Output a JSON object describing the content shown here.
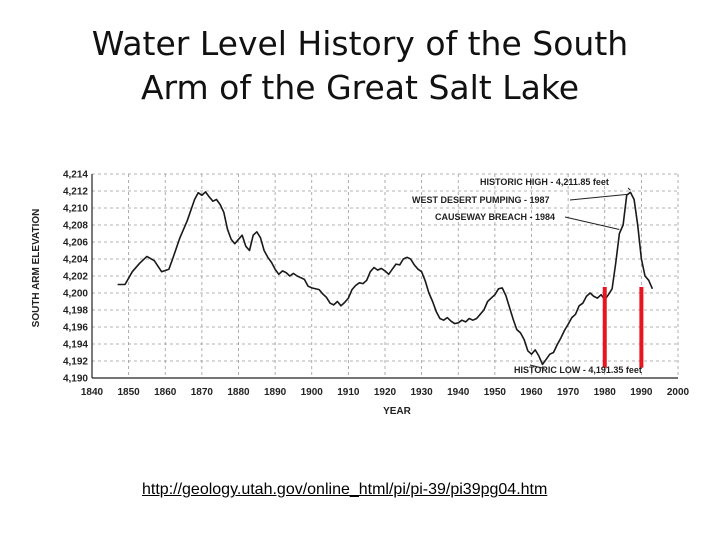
{
  "slide": {
    "title_line1": "Water Level History of the South",
    "title_line2": "Arm of the Great Salt Lake",
    "source_url": "http://geology.utah.gov/online_html/pi/pi-39/pi39pg04.htm"
  },
  "chart_data": {
    "type": "line",
    "title": "",
    "xlabel": "YEAR",
    "ylabel": "SOUTH ARM ELEVATION",
    "xlim": [
      1840,
      2000
    ],
    "ylim": [
      4190,
      4214
    ],
    "x_ticks": [
      "1840",
      "1850",
      "1860",
      "1870",
      "1880",
      "1890",
      "1900",
      "1910",
      "1920",
      "1930",
      "1940",
      "1950",
      "1960",
      "1970",
      "1980",
      "1990",
      "2000"
    ],
    "y_ticks": [
      "4,190",
      "4,192",
      "4,194",
      "4,196",
      "4,198",
      "4,200",
      "4,202",
      "4,204",
      "4,206",
      "4,208",
      "4,210",
      "4,212",
      "4,214"
    ],
    "grid": true,
    "series": [
      {
        "color": "#1a1a1a",
        "x": [
          1847,
          1849,
          1851,
          1853,
          1855,
          1857,
          1859,
          1861,
          1862,
          1864,
          1866,
          1868,
          1869,
          1870,
          1871,
          1872,
          1873,
          1874,
          1875,
          1876,
          1877,
          1878,
          1879,
          1880,
          1881,
          1882,
          1883,
          1884,
          1885,
          1886,
          1887,
          1888,
          1889,
          1890,
          1891,
          1892,
          1893,
          1894,
          1895,
          1896,
          1897,
          1898,
          1899,
          1900,
          1902,
          1903,
          1904,
          1905,
          1906,
          1907,
          1908,
          1909,
          1910,
          1911,
          1912,
          1913,
          1914,
          1915,
          1916,
          1917,
          1918,
          1919,
          1920,
          1921,
          1922,
          1923,
          1924,
          1925,
          1926,
          1927,
          1928,
          1929,
          1930,
          1931,
          1932,
          1933,
          1934,
          1935,
          1936,
          1937,
          1938,
          1939,
          1940,
          1941,
          1942,
          1943,
          1944,
          1945,
          1946,
          1947,
          1948,
          1949,
          1950,
          1951,
          1952,
          1953,
          1954,
          1955,
          1956,
          1957,
          1958,
          1959,
          1960,
          1961,
          1962,
          1963,
          1964,
          1965,
          1966,
          1967,
          1968,
          1969,
          1970,
          1971,
          1972,
          1973,
          1974,
          1975,
          1976,
          1977,
          1978,
          1979,
          1980,
          1981,
          1982,
          1983,
          1984,
          1985,
          1986,
          1987,
          1988,
          1989,
          1990,
          1991,
          1992,
          1993
        ],
        "values": [
          4201.0,
          4201.0,
          4202.5,
          4203.5,
          4204.3,
          4203.8,
          4202.5,
          4202.8,
          4204.0,
          4206.5,
          4208.5,
          4211.0,
          4211.8,
          4211.5,
          4211.9,
          4211.3,
          4210.8,
          4211.0,
          4210.4,
          4209.5,
          4207.5,
          4206.3,
          4205.8,
          4206.3,
          4206.8,
          4205.5,
          4205.0,
          4206.8,
          4207.2,
          4206.5,
          4205.0,
          4204.2,
          4203.6,
          4202.8,
          4202.2,
          4202.6,
          4202.4,
          4202.0,
          4202.3,
          4202.0,
          4201.8,
          4201.6,
          4200.8,
          4200.6,
          4200.4,
          4199.9,
          4199.5,
          4198.8,
          4198.6,
          4199.0,
          4198.5,
          4198.9,
          4199.4,
          4200.4,
          4200.9,
          4201.2,
          4201.1,
          4201.5,
          4202.5,
          4203.0,
          4202.7,
          4202.9,
          4202.6,
          4202.2,
          4202.8,
          4203.4,
          4203.3,
          4204.0,
          4204.2,
          4204.0,
          4203.3,
          4202.8,
          4202.5,
          4201.4,
          4200.0,
          4199.0,
          4197.8,
          4197.0,
          4196.8,
          4197.1,
          4196.7,
          4196.4,
          4196.5,
          4196.8,
          4196.6,
          4197.0,
          4196.8,
          4197.0,
          4197.5,
          4198.0,
          4199.0,
          4199.4,
          4199.8,
          4200.5,
          4200.6,
          4199.7,
          4198.3,
          4196.9,
          4195.7,
          4195.3,
          4194.5,
          4193.2,
          4192.8,
          4193.3,
          4192.6,
          4191.6,
          4192.2,
          4192.8,
          4193.0,
          4193.9,
          4194.7,
          4195.6,
          4196.3,
          4197.1,
          4197.5,
          4198.5,
          4198.8,
          4199.6,
          4200.0,
          4199.6,
          4199.4,
          4199.8,
          4199.2,
          4199.8,
          4200.5,
          4203.5,
          4207.0,
          4208.0,
          4211.5,
          4211.85,
          4211.0,
          4208.0,
          4204.0,
          4202.0,
          4201.5,
          4200.5
        ]
      }
    ],
    "annotations": [
      {
        "text": "HISTORIC HIGH - 4,211.85 feet",
        "x": 1987,
        "y": 4211.85
      },
      {
        "text": "WEST DESERT PUMPING - 1987",
        "x": 1987,
        "y": 4211.85
      },
      {
        "text": "CAUSEWAY BREACH - 1984",
        "x": 1984,
        "y": 4207.0
      },
      {
        "text": "HISTORIC LOW - 4,191.35 feet",
        "x": 1963,
        "y": 4191.35
      }
    ],
    "markers": [
      {
        "type": "vertical-bar",
        "color": "#e8141e",
        "x": 1980,
        "y_from": 4191.2,
        "y_to": 4200.7
      },
      {
        "type": "vertical-bar",
        "color": "#e8141e",
        "x": 1990,
        "y_from": 4191.2,
        "y_to": 4200.7
      }
    ]
  }
}
